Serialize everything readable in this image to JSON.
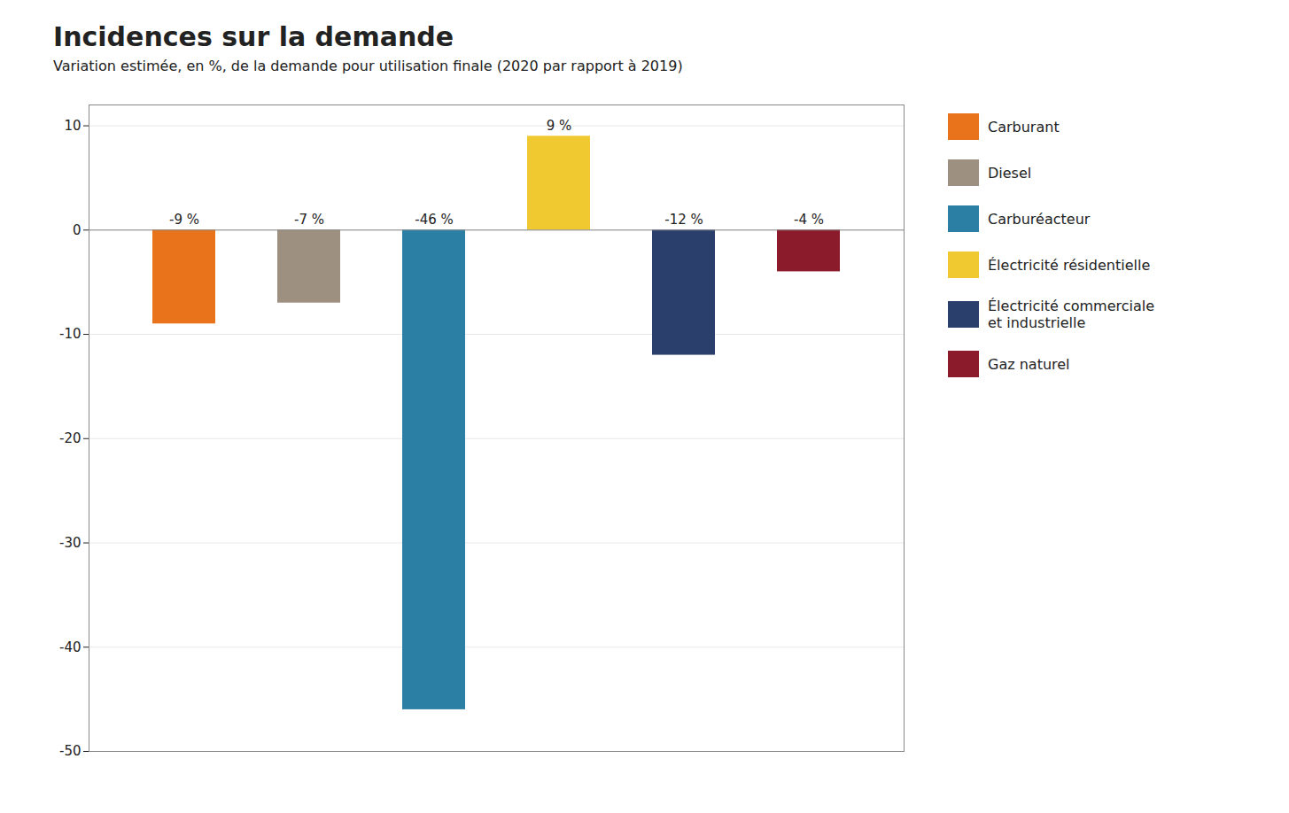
{
  "chart_data": {
    "type": "bar",
    "title": "Incidences sur la demande",
    "subtitle": "Variation estimée, en %, de la demande pour utilisation finale (2020 par rapport à 2019)",
    "categories": [
      "Carburant",
      "Diesel",
      "Carburéacteur",
      "Électricité résidentielle",
      "Électricité commerciale\net industrielle",
      "Gaz naturel"
    ],
    "values": [
      -9,
      -7,
      -46,
      9,
      -12,
      -4
    ],
    "value_labels": [
      "-9 %",
      "-7 %",
      "-46 %",
      "9 %",
      "-12 %",
      "-4 %"
    ],
    "colors": [
      "#E8731A",
      "#9E9080",
      "#2B7FA4",
      "#F0C830",
      "#2B3F6C",
      "#8B1A2A"
    ],
    "ylim": [
      -50,
      12
    ],
    "yticks": [
      -50,
      -40,
      -30,
      -20,
      -10,
      0,
      10
    ],
    "grid": true,
    "data_labels": true,
    "legend": "right",
    "tick_labels": "y"
  }
}
